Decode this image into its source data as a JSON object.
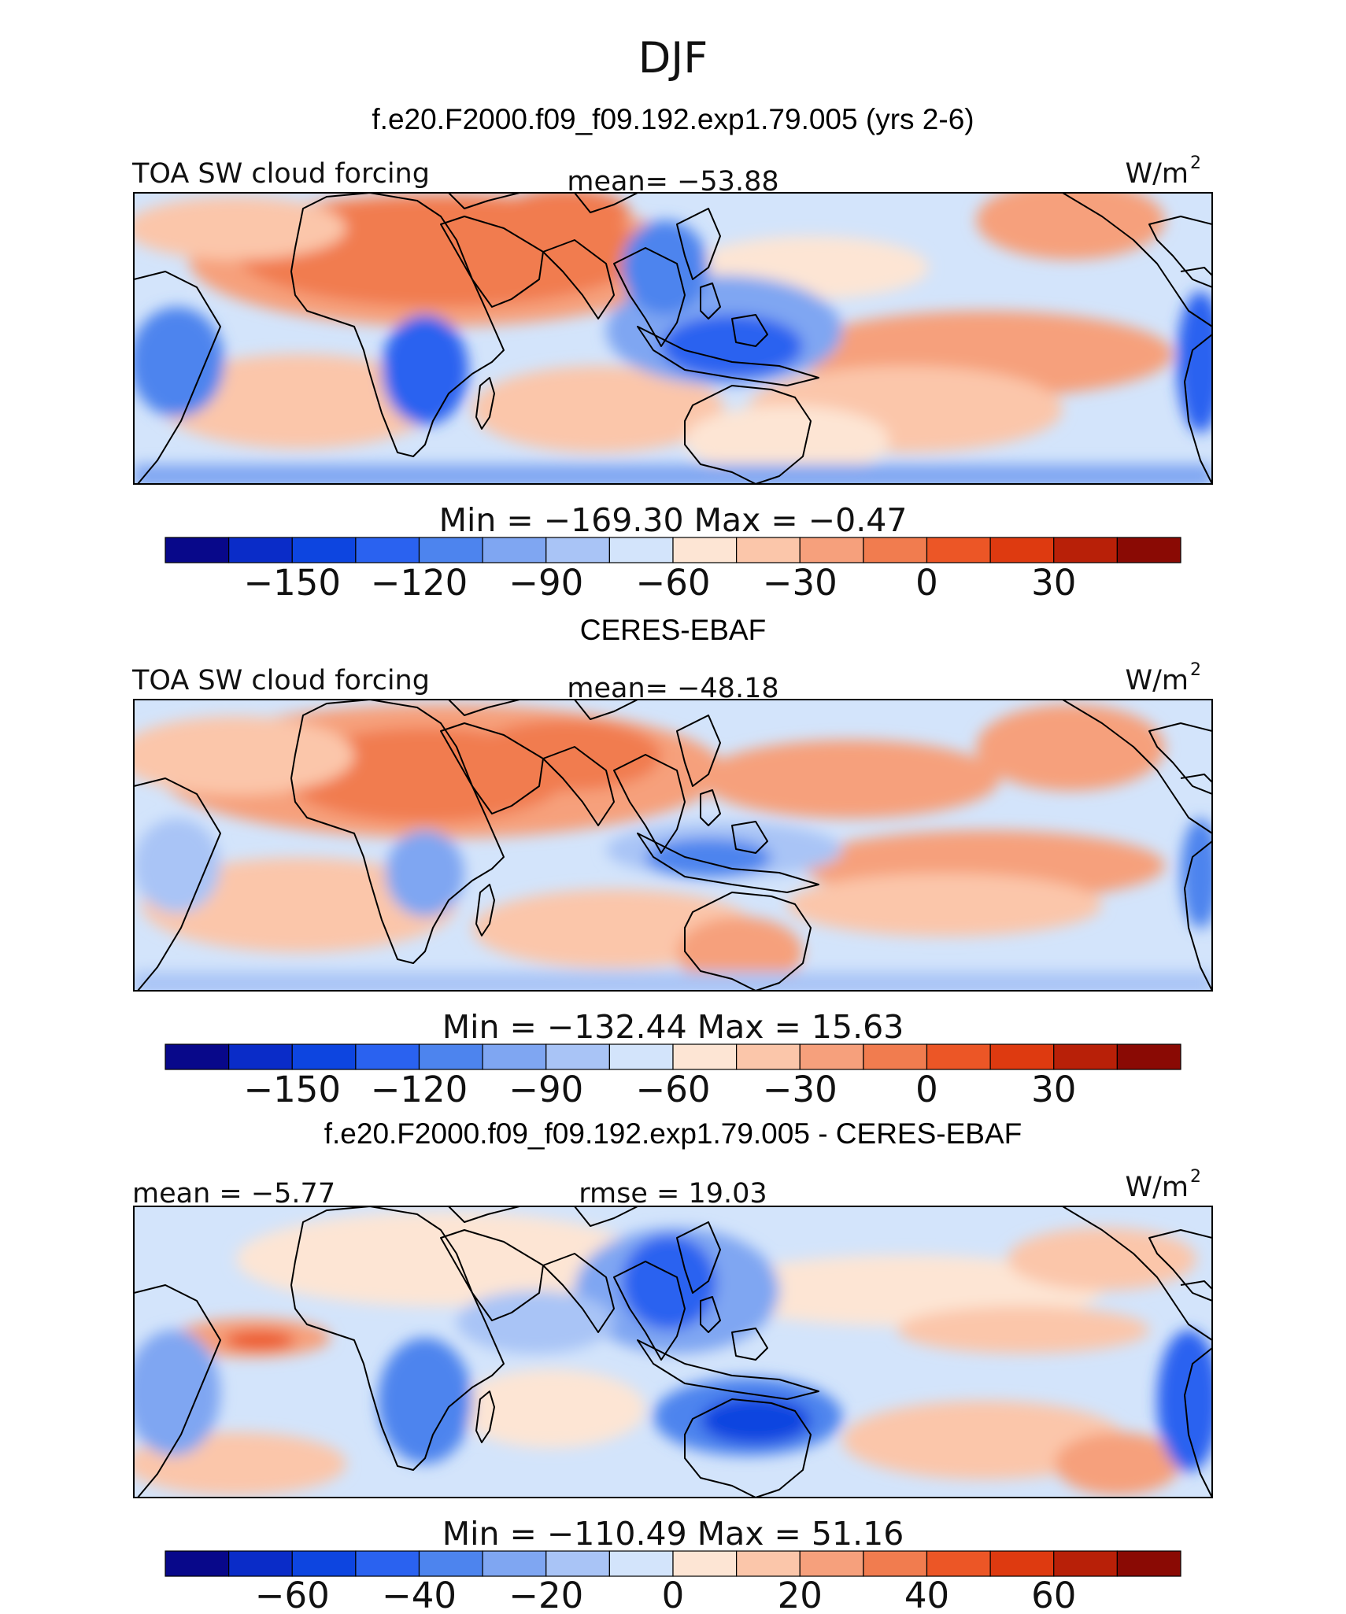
{
  "season": "DJF",
  "case_title": "f.e20.F2000.f09_f09.192.exp1.79.005 (yrs 2-6)",
  "unit": "W/m",
  "unit_superscript": "2",
  "colors": {
    "abs": [
      "#08088a",
      "#0a2cc8",
      "#0d45e0",
      "#2a62f0",
      "#4d84ee",
      "#7fa6f2",
      "#a9c4f6",
      "#d3e4fb",
      "#fde5d4",
      "#fbc6aa",
      "#f6a07c",
      "#f17c4f",
      "#ec5626",
      "#de3a10",
      "#b82008",
      "#8a0a04"
    ],
    "diff": [
      "#08088a",
      "#0a2cc8",
      "#0d45e0",
      "#2a62f0",
      "#4d84ee",
      "#7fa6f2",
      "#a9c4f6",
      "#d3e4fb",
      "#fde5d4",
      "#fbc6aa",
      "#f6a07c",
      "#f17c4f",
      "#ec5626",
      "#de3a10",
      "#b82008",
      "#8a0a04"
    ]
  },
  "panels": [
    {
      "id": "model",
      "heading": "",
      "left_label": "TOA SW cloud forcing",
      "center_label": "mean= −53.88",
      "minmax": "Min = −169.30 Max =  −0.47",
      "colorbar": "abs",
      "ticks": [
        "−150",
        "−120",
        "−90",
        "−60",
        "−30",
        "0",
        "30"
      ]
    },
    {
      "id": "obs",
      "heading": "CERES-EBAF",
      "left_label": "TOA SW cloud forcing",
      "center_label": "mean= −48.18",
      "minmax": "Min = −132.44 Max =  15.63",
      "colorbar": "abs",
      "ticks": [
        "−150",
        "−120",
        "−90",
        "−60",
        "−30",
        "0",
        "30"
      ]
    },
    {
      "id": "diff",
      "heading": "f.e20.F2000.f09_f09.192.exp1.79.005 - CERES-EBAF",
      "left_label": "mean =  −5.77",
      "center_label": "rmse =  19.03",
      "minmax": "Min = −110.49 Max =  51.16",
      "colorbar": "diff",
      "ticks": [
        "−60",
        "−40",
        "−20",
        "0",
        "20",
        "40",
        "60"
      ]
    }
  ]
}
